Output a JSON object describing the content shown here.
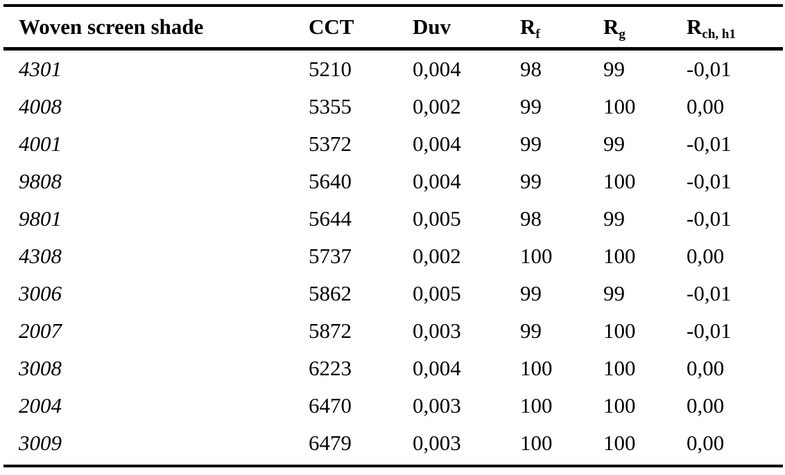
{
  "table": {
    "headers": {
      "shade": "Woven screen shade",
      "cct": "CCT",
      "duv": "Duv",
      "rf_main": "R",
      "rf_sub": "f",
      "rg_main": "R",
      "rg_sub": "g",
      "rch_main": "R",
      "rch_sub": "ch, h1"
    },
    "rows": [
      {
        "shade": "4301",
        "cct": "5210",
        "duv": "0,004",
        "rf": "98",
        "rg": "99",
        "rch": "-0,01"
      },
      {
        "shade": "4008",
        "cct": "5355",
        "duv": "0,002",
        "rf": "99",
        "rg": "100",
        "rch": "0,00"
      },
      {
        "shade": "4001",
        "cct": "5372",
        "duv": "0,004",
        "rf": "99",
        "rg": "99",
        "rch": "-0,01"
      },
      {
        "shade": "9808",
        "cct": "5640",
        "duv": "0,004",
        "rf": "99",
        "rg": "100",
        "rch": "-0,01"
      },
      {
        "shade": "9801",
        "cct": "5644",
        "duv": "0,005",
        "rf": "98",
        "rg": "99",
        "rch": "-0,01"
      },
      {
        "shade": "4308",
        "cct": "5737",
        "duv": "0,002",
        "rf": "100",
        "rg": "100",
        "rch": "0,00"
      },
      {
        "shade": "3006",
        "cct": "5862",
        "duv": "0,005",
        "rf": "99",
        "rg": "99",
        "rch": "-0,01"
      },
      {
        "shade": "2007",
        "cct": "5872",
        "duv": "0,003",
        "rf": "99",
        "rg": "100",
        "rch": "-0,01"
      },
      {
        "shade": "3008",
        "cct": "6223",
        "duv": "0,004",
        "rf": "100",
        "rg": "100",
        "rch": "0,00"
      },
      {
        "shade": "2004",
        "cct": "6470",
        "duv": "0,003",
        "rf": "100",
        "rg": "100",
        "rch": "0,00"
      },
      {
        "shade": "3009",
        "cct": "6479",
        "duv": "0,003",
        "rf": "100",
        "rg": "100",
        "rch": "0,00"
      }
    ]
  }
}
